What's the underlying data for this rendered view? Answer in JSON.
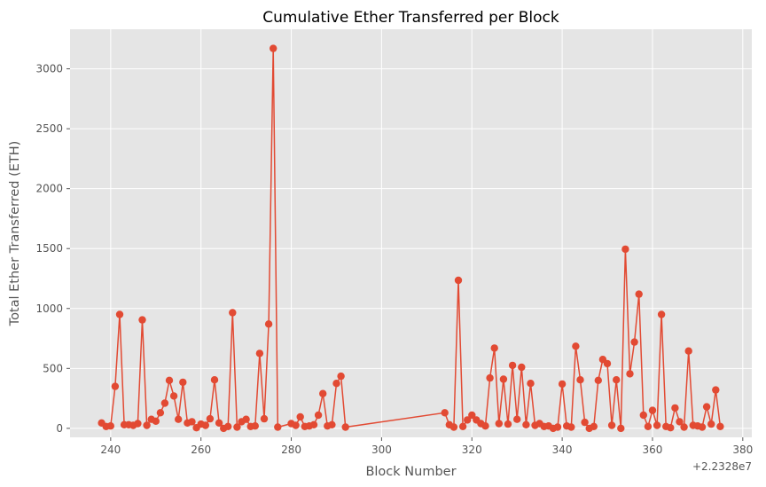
{
  "chart_data": {
    "type": "line",
    "title": "Cumulative Ether Transferred per Block",
    "xlabel": "Block Number",
    "ylabel": "Total Ether Transferred (ETH)",
    "x_offset_label": "+2.2328e7",
    "x_offset": 22328000,
    "xlim": [
      231,
      382
    ],
    "ylim": [
      -75,
      3330
    ],
    "xticks": [
      240,
      260,
      280,
      300,
      320,
      340,
      360,
      380
    ],
    "yticks": [
      0,
      500,
      1000,
      1500,
      2000,
      2500,
      3000
    ],
    "grid": true,
    "colors": {
      "series": "#E24A33",
      "plot_bg": "#E5E5E5",
      "grid": "#FFFFFF",
      "text": "#555555"
    },
    "series": [
      {
        "x": [
          238,
          239,
          240,
          241,
          242,
          243,
          244,
          245,
          246,
          247,
          248,
          249,
          250,
          251,
          252,
          253,
          254,
          255,
          256,
          257,
          258,
          259,
          260,
          261,
          262,
          263,
          264,
          265,
          266,
          267,
          268,
          269,
          270,
          271,
          272,
          273,
          274,
          275,
          276,
          277,
          280,
          281,
          282,
          283,
          284,
          285,
          286,
          287,
          288,
          289,
          290,
          291,
          292,
          314,
          315,
          316,
          317,
          318,
          319,
          320,
          321,
          322,
          323,
          324,
          325,
          326,
          327,
          328,
          329,
          330,
          331,
          332,
          333,
          334,
          335,
          336,
          337,
          338,
          339,
          340,
          341,
          342,
          343,
          344,
          345,
          346,
          347,
          348,
          349,
          350,
          351,
          352,
          353,
          354,
          355,
          356,
          357,
          358,
          359,
          360,
          361,
          362,
          363,
          364,
          365,
          366,
          367,
          368,
          369,
          370,
          371,
          372,
          373,
          374,
          375
        ],
        "y": [
          45,
          15,
          20,
          350,
          950,
          30,
          30,
          25,
          40,
          905,
          25,
          75,
          60,
          130,
          210,
          400,
          270,
          75,
          385,
          45,
          55,
          5,
          35,
          25,
          80,
          405,
          45,
          0,
          15,
          965,
          10,
          55,
          75,
          15,
          20,
          625,
          80,
          870,
          3170,
          10,
          40,
          25,
          95,
          15,
          20,
          30,
          110,
          290,
          20,
          30,
          375,
          435,
          10,
          130,
          30,
          10,
          1235,
          15,
          70,
          110,
          70,
          40,
          20,
          420,
          670,
          40,
          410,
          35,
          525,
          75,
          510,
          30,
          375,
          25,
          40,
          15,
          20,
          0,
          10,
          370,
          20,
          10,
          685,
          405,
          50,
          0,
          15,
          400,
          575,
          540,
          25,
          405,
          0,
          1495,
          455,
          720,
          1120,
          110,
          15,
          150,
          25,
          950,
          15,
          5,
          170,
          55,
          10,
          645,
          25,
          20,
          10,
          180,
          35,
          320,
          15
        ]
      }
    ]
  }
}
